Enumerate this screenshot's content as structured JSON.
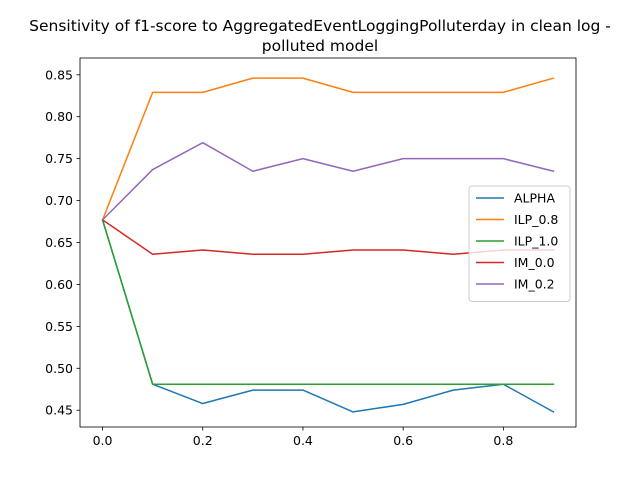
{
  "chart_data": {
    "type": "line",
    "title_lines": [
      "Sensitivity of f1-score to AggregatedEventLoggingPolluterday in clean log -",
      "polluted model"
    ],
    "xlabel": "",
    "ylabel": "",
    "xlim": [
      -0.045,
      0.945
    ],
    "ylim": [
      0.43,
      0.87
    ],
    "xticks": [
      0.0,
      0.2,
      0.4,
      0.6,
      0.8
    ],
    "xtick_labels": [
      "0.0",
      "0.2",
      "0.4",
      "0.6",
      "0.8"
    ],
    "yticks": [
      0.45,
      0.5,
      0.55,
      0.6,
      0.65,
      0.7,
      0.75,
      0.8,
      0.85
    ],
    "ytick_labels": [
      "0.45",
      "0.50",
      "0.55",
      "0.60",
      "0.65",
      "0.70",
      "0.75",
      "0.80",
      "0.85"
    ],
    "grid": false,
    "legend_position": "center-right",
    "x": [
      0.0,
      0.1,
      0.2,
      0.3,
      0.4,
      0.5,
      0.6,
      0.7,
      0.8,
      0.9
    ],
    "series": [
      {
        "name": "ALPHA",
        "color": "#1f77b4",
        "values": [
          0.677,
          0.481,
          0.458,
          0.474,
          0.474,
          0.448,
          0.457,
          0.474,
          0.481,
          0.448
        ]
      },
      {
        "name": "ILP_0.8",
        "color": "#ff7f0e",
        "values": [
          0.677,
          0.829,
          0.829,
          0.846,
          0.846,
          0.829,
          0.829,
          0.829,
          0.829,
          0.846
        ]
      },
      {
        "name": "ILP_1.0",
        "color": "#2ca02c",
        "values": [
          0.677,
          0.481,
          0.481,
          0.481,
          0.481,
          0.481,
          0.481,
          0.481,
          0.481,
          0.481
        ]
      },
      {
        "name": "IM_0.0",
        "color": "#d62728",
        "values": [
          0.677,
          0.636,
          0.641,
          0.636,
          0.636,
          0.641,
          0.641,
          0.636,
          0.641,
          0.641
        ]
      },
      {
        "name": "IM_0.2",
        "color": "#9467bd",
        "values": [
          0.677,
          0.737,
          0.769,
          0.735,
          0.75,
          0.735,
          0.75,
          0.75,
          0.75,
          0.735
        ]
      }
    ]
  }
}
